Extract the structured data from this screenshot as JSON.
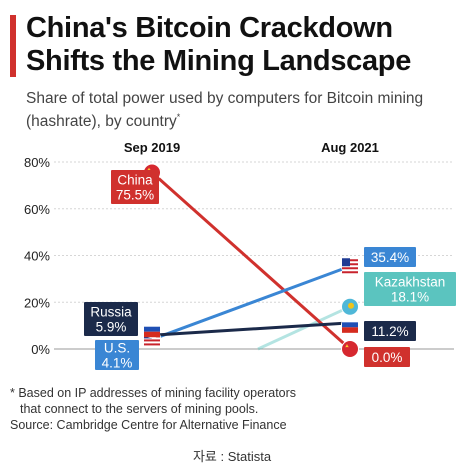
{
  "title": "China's Bitcoin Crackdown Shifts the Mining Landscape",
  "subtitle": "Share of total power used by computers for Bitcoin mining (hashrate), by country",
  "subtitle_mark": "*",
  "footnote_line1": "* Based on IP addresses of mining facility operators",
  "footnote_line2": "that connect to the servers of mining pools.",
  "source": "Source: Cambridge Centre for Alternative Finance",
  "credit": "자료 : Statista",
  "chart_data": {
    "type": "line",
    "x": [
      "Sep 2019",
      "Aug 2021"
    ],
    "yticks": [
      "80%",
      "60%",
      "40%",
      "20%",
      "0%"
    ],
    "ylim": [
      0,
      80
    ],
    "series": [
      {
        "name": "China",
        "values": [
          75.5,
          0.0
        ],
        "start_label": "75.5%",
        "end_label": "0.0%",
        "color": "#d0312d"
      },
      {
        "name": "U.S.",
        "values": [
          4.1,
          35.4
        ],
        "start_label": "4.1%",
        "end_label": "35.4%",
        "color": "#3a86d4"
      },
      {
        "name": "Russia",
        "values": [
          5.9,
          11.2
        ],
        "start_label": "5.9%",
        "end_label": "11.2%",
        "color": "#1b2a4a"
      },
      {
        "name": "Kazakhstan",
        "values": [
          null,
          18.1
        ],
        "end_label": "18.1%",
        "color": "#5bc4bf"
      }
    ]
  }
}
